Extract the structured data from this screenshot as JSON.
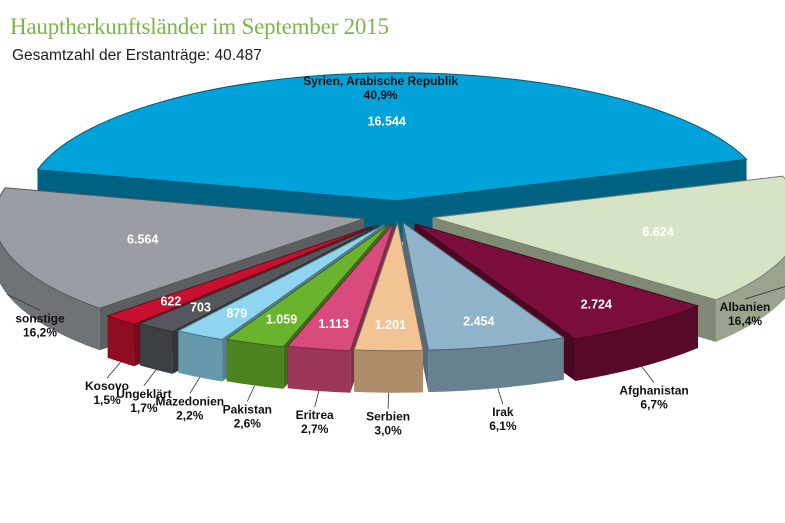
{
  "header": {
    "title": "Hauptherkunftsländer im September 2015",
    "subtitle_label": "Gesamtzahl der Erstanträge:",
    "subtitle_value": "40.487"
  },
  "chart_data": {
    "type": "pie",
    "title": "Hauptherkunftsländer im September 2015",
    "total": 40487,
    "slices": [
      {
        "name": "Syrien, Arabische Republik",
        "value": 16544,
        "value_label": "16.544",
        "percent_label": "40,9%",
        "color": "#00a3d9"
      },
      {
        "name": "Albanien",
        "value": 6624,
        "value_label": "6.624",
        "percent_label": "16,4%",
        "color": "#d6e4c5"
      },
      {
        "name": "Afghanistan",
        "value": 2724,
        "value_label": "2.724",
        "percent_label": "6,7%",
        "color": "#7a0d3a"
      },
      {
        "name": "Irak",
        "value": 2454,
        "value_label": "2.454",
        "percent_label": "6,1%",
        "color": "#8fb3c8"
      },
      {
        "name": "Serbien",
        "value": 1201,
        "value_label": "1.201",
        "percent_label": "3,0%",
        "color": "#f2c494"
      },
      {
        "name": "Eritrea",
        "value": 1113,
        "value_label": "1.113",
        "percent_label": "2,7%",
        "color": "#d94b7c"
      },
      {
        "name": "Pakistan",
        "value": 1059,
        "value_label": "1.059",
        "percent_label": "2,6%",
        "color": "#6ab42d"
      },
      {
        "name": "Mazedonien",
        "value": 879,
        "value_label": "879",
        "percent_label": "2,2%",
        "color": "#8fd5ef"
      },
      {
        "name": "Ungeklärt",
        "value": 703,
        "value_label": "703",
        "percent_label": "1,7%",
        "color": "#54575c"
      },
      {
        "name": "Kosovo",
        "value": 622,
        "value_label": "622",
        "percent_label": "1,5%",
        "color": "#c8102e"
      },
      {
        "name": "sonstige",
        "value": 6564,
        "value_label": "6.564",
        "percent_label": "16,2%",
        "color": "#9a9ea4"
      }
    ]
  }
}
